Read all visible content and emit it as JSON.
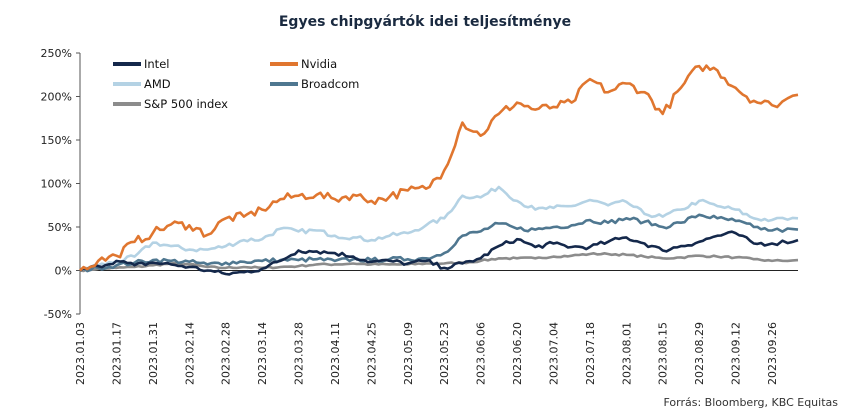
{
  "chart_data": {
    "type": "line",
    "title": "Egyes chipgyártók idei teljesítménye",
    "source": "Forrás: Bloomberg,  KBC Equitas",
    "ylim": [
      -50,
      250
    ],
    "yticks": [
      -50,
      0,
      50,
      100,
      150,
      200,
      250
    ],
    "ytick_labels": [
      "-50%",
      "0%",
      "50%",
      "100%",
      "150%",
      "200%",
      "250%"
    ],
    "x_range": [
      "2023.01.03",
      "2023.10.06"
    ],
    "xtick_labels": [
      "2023.01.03",
      "2023.01.17",
      "2023.01.31",
      "2023.02.14",
      "2023.02.28",
      "2023.03.14",
      "2023.03.28",
      "2023.04.11",
      "2023.04.25",
      "2023.05.09",
      "2023.05.23",
      "2023.06.06",
      "2023.06.20",
      "2023.07.04",
      "2023.07.18",
      "2023.08.01",
      "2023.08.15",
      "2023.08.29",
      "2023.09.12",
      "2023.09.26"
    ],
    "grid": false,
    "legend_placement": "top-left",
    "series": [
      {
        "name": "Intel",
        "color": "#14284b",
        "points": [
          [
            "2023.01.03",
            0
          ],
          [
            "2023.01.10",
            5
          ],
          [
            "2023.01.17",
            11
          ],
          [
            "2023.01.24",
            6
          ],
          [
            "2023.01.31",
            9
          ],
          [
            "2023.02.07",
            7
          ],
          [
            "2023.02.14",
            4
          ],
          [
            "2023.02.21",
            0
          ],
          [
            "2023.02.28",
            -4
          ],
          [
            "2023.03.07",
            -2
          ],
          [
            "2023.03.14",
            2
          ],
          [
            "2023.03.21",
            11
          ],
          [
            "2023.03.28",
            23
          ],
          [
            "2023.04.04",
            22
          ],
          [
            "2023.04.11",
            20
          ],
          [
            "2023.04.18",
            16
          ],
          [
            "2023.04.25",
            10
          ],
          [
            "2023.05.02",
            11
          ],
          [
            "2023.05.09",
            8
          ],
          [
            "2023.05.16",
            11
          ],
          [
            "2023.05.23",
            3
          ],
          [
            "2023.05.30",
            8
          ],
          [
            "2023.06.06",
            14
          ],
          [
            "2023.06.13",
            28
          ],
          [
            "2023.06.20",
            36
          ],
          [
            "2023.06.27",
            27
          ],
          [
            "2023.07.04",
            31
          ],
          [
            "2023.07.11",
            27
          ],
          [
            "2023.07.18",
            27
          ],
          [
            "2023.07.25",
            33
          ],
          [
            "2023.08.01",
            38
          ],
          [
            "2023.08.08",
            31
          ],
          [
            "2023.08.15",
            23
          ],
          [
            "2023.08.22",
            28
          ],
          [
            "2023.08.29",
            33
          ],
          [
            "2023.09.05",
            40
          ],
          [
            "2023.09.12",
            43
          ],
          [
            "2023.09.19",
            31
          ],
          [
            "2023.09.26",
            31
          ],
          [
            "2023.10.06",
            35
          ]
        ]
      },
      {
        "name": "Nvidia",
        "color": "#e0762f",
        "points": [
          [
            "2023.01.03",
            0
          ],
          [
            "2023.01.10",
            11
          ],
          [
            "2023.01.17",
            17
          ],
          [
            "2023.01.24",
            33
          ],
          [
            "2023.01.31",
            43
          ],
          [
            "2023.02.07",
            53
          ],
          [
            "2023.02.14",
            52
          ],
          [
            "2023.02.21",
            41
          ],
          [
            "2023.02.28",
            60
          ],
          [
            "2023.03.07",
            62
          ],
          [
            "2023.03.14",
            70
          ],
          [
            "2023.03.21",
            82
          ],
          [
            "2023.03.28",
            86
          ],
          [
            "2023.04.04",
            87
          ],
          [
            "2023.04.11",
            82
          ],
          [
            "2023.04.18",
            87
          ],
          [
            "2023.04.25",
            80
          ],
          [
            "2023.05.02",
            85
          ],
          [
            "2023.05.09",
            92
          ],
          [
            "2023.05.16",
            94
          ],
          [
            "2023.05.23",
            115
          ],
          [
            "2023.05.30",
            170
          ],
          [
            "2023.06.06",
            155
          ],
          [
            "2023.06.13",
            180
          ],
          [
            "2023.06.20",
            193
          ],
          [
            "2023.06.27",
            185
          ],
          [
            "2023.07.04",
            188
          ],
          [
            "2023.07.11",
            193
          ],
          [
            "2023.07.18",
            220
          ],
          [
            "2023.07.25",
            205
          ],
          [
            "2023.08.01",
            215
          ],
          [
            "2023.08.08",
            205
          ],
          [
            "2023.08.15",
            180
          ],
          [
            "2023.08.22",
            210
          ],
          [
            "2023.08.29",
            235
          ],
          [
            "2023.09.05",
            230
          ],
          [
            "2023.09.12",
            210
          ],
          [
            "2023.09.19",
            195
          ],
          [
            "2023.09.26",
            190
          ],
          [
            "2023.10.06",
            202
          ]
        ]
      },
      {
        "name": "AMD",
        "color": "#b4d2e4",
        "points": [
          [
            "2023.01.03",
            0
          ],
          [
            "2023.01.10",
            6
          ],
          [
            "2023.01.17",
            10
          ],
          [
            "2023.01.24",
            16
          ],
          [
            "2023.01.31",
            32
          ],
          [
            "2023.02.07",
            28
          ],
          [
            "2023.02.14",
            24
          ],
          [
            "2023.02.21",
            24
          ],
          [
            "2023.02.28",
            28
          ],
          [
            "2023.03.07",
            35
          ],
          [
            "2023.03.14",
            36
          ],
          [
            "2023.03.21",
            48
          ],
          [
            "2023.03.28",
            45
          ],
          [
            "2023.04.04",
            46
          ],
          [
            "2023.04.11",
            40
          ],
          [
            "2023.04.18",
            38
          ],
          [
            "2023.04.25",
            35
          ],
          [
            "2023.05.02",
            40
          ],
          [
            "2023.05.09",
            43
          ],
          [
            "2023.05.16",
            52
          ],
          [
            "2023.05.23",
            60
          ],
          [
            "2023.05.30",
            86
          ],
          [
            "2023.06.06",
            84
          ],
          [
            "2023.06.13",
            96
          ],
          [
            "2023.06.20",
            80
          ],
          [
            "2023.06.27",
            70
          ],
          [
            "2023.07.04",
            72
          ],
          [
            "2023.07.11",
            74
          ],
          [
            "2023.07.18",
            81
          ],
          [
            "2023.07.25",
            75
          ],
          [
            "2023.08.01",
            79
          ],
          [
            "2023.08.08",
            65
          ],
          [
            "2023.08.15",
            62
          ],
          [
            "2023.08.22",
            70
          ],
          [
            "2023.08.29",
            80
          ],
          [
            "2023.09.05",
            74
          ],
          [
            "2023.09.12",
            70
          ],
          [
            "2023.09.19",
            60
          ],
          [
            "2023.09.26",
            58
          ],
          [
            "2023.10.06",
            60
          ]
        ]
      },
      {
        "name": "Broadcom",
        "color": "#4f7790",
        "points": [
          [
            "2023.01.03",
            0
          ],
          [
            "2023.01.10",
            3
          ],
          [
            "2023.01.17",
            6
          ],
          [
            "2023.01.24",
            9
          ],
          [
            "2023.01.31",
            12
          ],
          [
            "2023.02.07",
            11
          ],
          [
            "2023.02.14",
            10
          ],
          [
            "2023.02.21",
            7
          ],
          [
            "2023.02.28",
            9
          ],
          [
            "2023.03.07",
            10
          ],
          [
            "2023.03.14",
            11
          ],
          [
            "2023.03.21",
            12
          ],
          [
            "2023.03.28",
            12
          ],
          [
            "2023.04.04",
            13
          ],
          [
            "2023.04.11",
            11
          ],
          [
            "2023.04.18",
            13
          ],
          [
            "2023.04.25",
            12
          ],
          [
            "2023.05.02",
            13
          ],
          [
            "2023.05.09",
            13
          ],
          [
            "2023.05.16",
            14
          ],
          [
            "2023.05.23",
            20
          ],
          [
            "2023.05.30",
            40
          ],
          [
            "2023.06.06",
            45
          ],
          [
            "2023.06.13",
            54
          ],
          [
            "2023.06.20",
            48
          ],
          [
            "2023.06.27",
            47
          ],
          [
            "2023.07.04",
            50
          ],
          [
            "2023.07.11",
            52
          ],
          [
            "2023.07.18",
            58
          ],
          [
            "2023.07.25",
            55
          ],
          [
            "2023.08.01",
            60
          ],
          [
            "2023.08.08",
            56
          ],
          [
            "2023.08.15",
            50
          ],
          [
            "2023.08.22",
            55
          ],
          [
            "2023.08.29",
            64
          ],
          [
            "2023.09.05",
            60
          ],
          [
            "2023.09.12",
            57
          ],
          [
            "2023.09.19",
            50
          ],
          [
            "2023.09.26",
            46
          ],
          [
            "2023.10.06",
            47
          ]
        ]
      },
      {
        "name": "S&P 500 index",
        "color": "#8c8c8c",
        "points": [
          [
            "2023.01.03",
            0
          ],
          [
            "2023.01.10",
            2
          ],
          [
            "2023.01.17",
            3
          ],
          [
            "2023.01.24",
            4
          ],
          [
            "2023.01.31",
            6
          ],
          [
            "2023.02.07",
            8
          ],
          [
            "2023.02.14",
            7
          ],
          [
            "2023.02.21",
            4
          ],
          [
            "2023.02.28",
            3
          ],
          [
            "2023.03.07",
            4
          ],
          [
            "2023.03.14",
            3
          ],
          [
            "2023.03.21",
            4
          ],
          [
            "2023.03.28",
            5
          ],
          [
            "2023.04.04",
            7
          ],
          [
            "2023.04.11",
            7
          ],
          [
            "2023.04.18",
            8
          ],
          [
            "2023.04.25",
            7
          ],
          [
            "2023.05.02",
            7
          ],
          [
            "2023.05.09",
            7
          ],
          [
            "2023.05.16",
            8
          ],
          [
            "2023.05.23",
            8
          ],
          [
            "2023.05.30",
            9
          ],
          [
            "2023.06.06",
            11
          ],
          [
            "2023.06.13",
            14
          ],
          [
            "2023.06.20",
            14
          ],
          [
            "2023.06.27",
            14
          ],
          [
            "2023.07.04",
            16
          ],
          [
            "2023.07.11",
            17
          ],
          [
            "2023.07.18",
            19
          ],
          [
            "2023.07.25",
            19
          ],
          [
            "2023.08.01",
            18
          ],
          [
            "2023.08.08",
            16
          ],
          [
            "2023.08.15",
            14
          ],
          [
            "2023.08.22",
            15
          ],
          [
            "2023.08.29",
            17
          ],
          [
            "2023.09.05",
            16
          ],
          [
            "2023.09.12",
            15
          ],
          [
            "2023.09.19",
            13
          ],
          [
            "2023.09.26",
            11
          ],
          [
            "2023.10.06",
            12
          ]
        ]
      }
    ]
  }
}
